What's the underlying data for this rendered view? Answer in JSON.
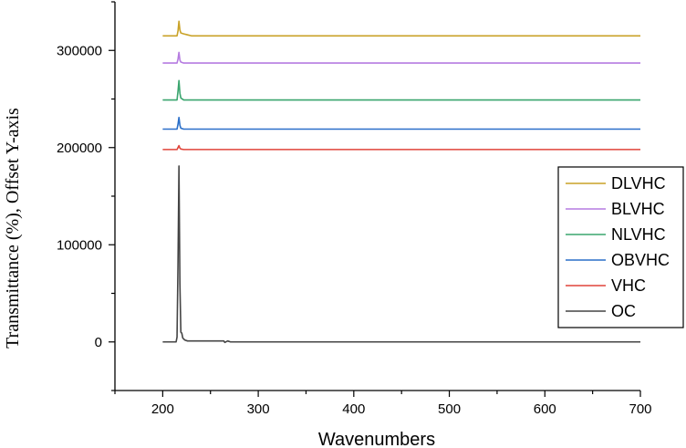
{
  "chart_data": {
    "type": "line",
    "title": "",
    "xlabel": "Wavenumbers",
    "ylabel": "Transmittance  (%), Offset  Y-axis",
    "xlim": [
      150,
      700
    ],
    "ylim": [
      -50000,
      350000
    ],
    "x_ticks": [
      "200",
      "300",
      "400",
      "500",
      "600",
      "700"
    ],
    "y_ticks": [
      "0",
      "100000",
      "200000",
      "300000"
    ],
    "legend_position": "right",
    "series": [
      {
        "name": "DLVHC",
        "color": "#c9a227",
        "points": [
          [
            200,
            315000
          ],
          [
            215,
            315000
          ],
          [
            216,
            320000
          ],
          [
            217,
            330000
          ],
          [
            218,
            321000
          ],
          [
            219,
            318000
          ],
          [
            222,
            317000
          ],
          [
            226,
            316000
          ],
          [
            230,
            315000
          ],
          [
            700,
            315000
          ]
        ]
      },
      {
        "name": "BLVHC",
        "color": "#b57be0",
        "points": [
          [
            200,
            287000
          ],
          [
            215,
            287000
          ],
          [
            216,
            291000
          ],
          [
            217,
            298000
          ],
          [
            218,
            290000
          ],
          [
            219,
            288000
          ],
          [
            222,
            287000
          ],
          [
            700,
            287000
          ]
        ]
      },
      {
        "name": "NLVHC",
        "color": "#3aa56e",
        "points": [
          [
            200,
            249000
          ],
          [
            215,
            249000
          ],
          [
            216,
            258000
          ],
          [
            217,
            269000
          ],
          [
            218,
            256000
          ],
          [
            219,
            251000
          ],
          [
            222,
            249000
          ],
          [
            700,
            249000
          ]
        ]
      },
      {
        "name": "OBVHC",
        "color": "#2a6fc9",
        "points": [
          [
            200,
            219000
          ],
          [
            215,
            219000
          ],
          [
            216,
            224000
          ],
          [
            217,
            231000
          ],
          [
            218,
            223000
          ],
          [
            219,
            220000
          ],
          [
            222,
            219000
          ],
          [
            700,
            219000
          ]
        ]
      },
      {
        "name": "VHC",
        "color": "#e0443a",
        "points": [
          [
            200,
            198000
          ],
          [
            215,
            198000
          ],
          [
            216,
            200000
          ],
          [
            217,
            202000
          ],
          [
            218,
            199500
          ],
          [
            219,
            198500
          ],
          [
            222,
            198000
          ],
          [
            700,
            198000
          ]
        ]
      },
      {
        "name": "OC",
        "color": "#444444",
        "points": [
          [
            200,
            0
          ],
          [
            214,
            0
          ],
          [
            215,
            5000
          ],
          [
            216,
            80000
          ],
          [
            217,
            181000
          ],
          [
            218,
            60000
          ],
          [
            219,
            10000
          ],
          [
            220,
            9000
          ],
          [
            221,
            4000
          ],
          [
            223,
            2000
          ],
          [
            226,
            1000
          ],
          [
            230,
            1000
          ],
          [
            264,
            1000
          ],
          [
            265,
            -500
          ],
          [
            268,
            1000
          ],
          [
            271,
            0
          ],
          [
            700,
            0
          ]
        ]
      }
    ]
  }
}
